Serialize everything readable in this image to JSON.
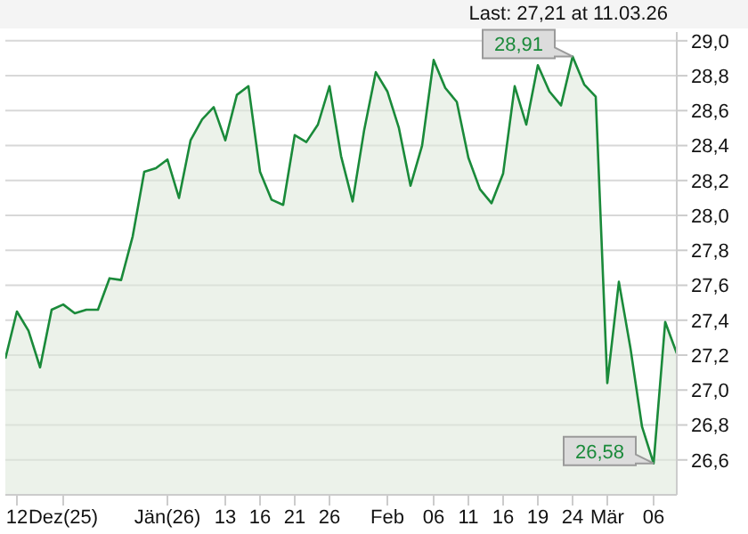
{
  "chart_data": {
    "type": "area",
    "annotations": [
      "Last: 27,21 at 11.03.26"
    ],
    "categories": [
      null,
      "12",
      null,
      null,
      null,
      "Dez(25)",
      null,
      null,
      null,
      null,
      null,
      null,
      null,
      null,
      "Jän(26)",
      null,
      null,
      null,
      null,
      "13",
      null,
      null,
      "16",
      null,
      null,
      "21",
      null,
      null,
      "26",
      null,
      null,
      null,
      null,
      "Feb",
      null,
      null,
      null,
      "06",
      null,
      null,
      "11",
      null,
      null,
      "16",
      null,
      null,
      "19",
      null,
      null,
      "24",
      null,
      null,
      "Mär",
      null,
      null,
      null,
      "06",
      null,
      null
    ],
    "series": [
      {
        "color": "#1a8a3a",
        "values": [
          27.18,
          27.45,
          27.34,
          27.13,
          27.46,
          27.49,
          27.44,
          27.46,
          27.46,
          27.64,
          27.63,
          27.88,
          28.25,
          28.27,
          28.32,
          28.1,
          28.43,
          28.55,
          28.62,
          28.43,
          28.69,
          28.74,
          28.25,
          28.09,
          28.06,
          28.46,
          28.42,
          28.52,
          28.74,
          28.34,
          28.08,
          28.49,
          28.82,
          28.71,
          28.5,
          28.17,
          28.4,
          28.89,
          28.73,
          28.65,
          28.33,
          28.15,
          28.07,
          28.24,
          28.74,
          28.52,
          28.86,
          28.71,
          28.63,
          28.91,
          28.75,
          28.68,
          27.04,
          27.62,
          27.24,
          26.79,
          26.58,
          27.39,
          27.21
        ],
        "value_labels": [
          null,
          null,
          null,
          null,
          null,
          null,
          null,
          null,
          null,
          null,
          null,
          null,
          null,
          null,
          null,
          null,
          null,
          null,
          null,
          null,
          null,
          null,
          null,
          null,
          null,
          null,
          null,
          null,
          null,
          null,
          null,
          null,
          null,
          null,
          null,
          null,
          null,
          null,
          null,
          null,
          null,
          null,
          null,
          null,
          null,
          null,
          null,
          null,
          null,
          "28,91",
          null,
          null,
          null,
          null,
          null,
          null,
          "26,58",
          null,
          null
        ]
      }
    ],
    "ylim": [
      26.4,
      29.05
    ],
    "yticks": [
      {
        "value": 26.6,
        "label": "26,6"
      },
      {
        "value": 26.8,
        "label": "26,8"
      },
      {
        "value": 27.0,
        "label": "27,0"
      },
      {
        "value": 27.2,
        "label": "27,2"
      },
      {
        "value": 27.4,
        "label": "27,4"
      },
      {
        "value": 27.6,
        "label": "27,6"
      },
      {
        "value": 27.8,
        "label": "27,8"
      },
      {
        "value": 28.0,
        "label": "28,0"
      },
      {
        "value": 28.2,
        "label": "28,2"
      },
      {
        "value": 28.4,
        "label": "28,4"
      },
      {
        "value": 28.6,
        "label": "28,6"
      },
      {
        "value": 28.8,
        "label": "28,8"
      },
      {
        "value": 29.0,
        "label": "29,0"
      }
    ],
    "grid": "y",
    "legend": false,
    "marker": "none",
    "line_style": "solid"
  }
}
